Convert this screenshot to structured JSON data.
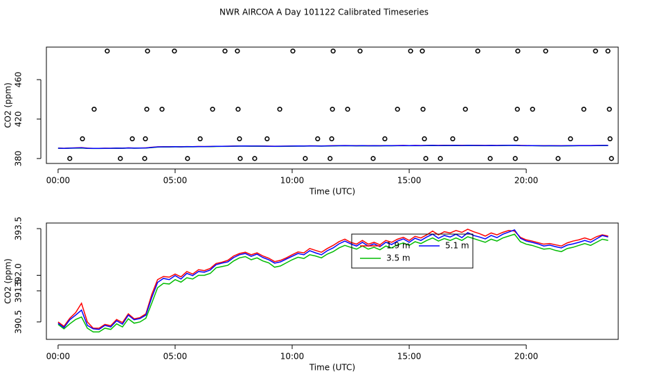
{
  "title": "NWR AIRCOA A  Day 101122  Calibrated Timeseries",
  "chart_data": [
    {
      "type": "scatter",
      "xlabel": "Time (UTC)",
      "ylabel": "CO2 (ppm)",
      "xlim": [
        -0.5,
        23.93
      ],
      "ylim": [
        375,
        493
      ],
      "xticks": [
        {
          "value": 0,
          "label": "00:00"
        },
        {
          "value": 5,
          "label": "05:00"
        },
        {
          "value": 10,
          "label": "10:00"
        },
        {
          "value": 15,
          "label": "15:00"
        },
        {
          "value": 20,
          "label": "20:00"
        }
      ],
      "yticks": [
        380,
        420,
        460
      ],
      "color": "#000000",
      "x": [
        2.1,
        3.82,
        4.97,
        7.13,
        7.66,
        10.03,
        11.75,
        12.9,
        15.06,
        15.56,
        17.93,
        19.64,
        20.83,
        22.96,
        23.49,
        1.54,
        3.79,
        4.44,
        6.6,
        7.69,
        9.47,
        11.72,
        12.37,
        14.5,
        15.59,
        17.4,
        19.62,
        20.27,
        22.46,
        23.55,
        1.04,
        3.17,
        3.73,
        6.07,
        7.75,
        8.93,
        11.09,
        11.69,
        13.96,
        15.65,
        16.86,
        19.56,
        21.89,
        23.58,
        0.5,
        2.66,
        3.7,
        5.53,
        7.78,
        8.4,
        10.56,
        11.62,
        13.46,
        15.71,
        16.33,
        18.46,
        19.53,
        21.36,
        23.64
      ],
      "values": [
        489,
        489,
        489,
        489,
        489,
        489,
        489,
        489,
        489,
        489,
        489,
        489,
        489,
        489,
        489,
        430,
        430,
        430,
        430,
        430,
        430,
        430,
        430,
        430,
        430,
        430,
        430,
        430,
        430,
        430,
        400,
        400,
        400,
        400,
        400,
        400,
        400,
        400,
        400,
        400,
        400,
        400,
        400,
        400,
        380,
        380,
        380,
        380,
        380,
        380,
        380,
        380,
        380,
        380,
        380,
        380,
        380,
        380,
        380
      ]
    },
    {
      "type": "line",
      "xlabel": "Time (UTC)",
      "ylabel": "CO2 (ppm)",
      "xlim": [
        -0.5,
        23.93
      ],
      "ylim": [
        389.94,
        393.68
      ],
      "xticks": [
        {
          "value": 0,
          "label": "00:00"
        },
        {
          "value": 5,
          "label": "05:00"
        },
        {
          "value": 10,
          "label": "10:00"
        },
        {
          "value": 15,
          "label": "15:00"
        },
        {
          "value": 20,
          "label": "20:00"
        }
      ],
      "yticks": [
        390.5,
        391.5,
        {
          "value": 392,
          "label": "392.0"
        },
        393.5
      ],
      "x": [
        0,
        0.25,
        0.5,
        0.75,
        1,
        1.25,
        1.5,
        1.75,
        2,
        2.25,
        2.5,
        2.75,
        3,
        3.25,
        3.5,
        3.75,
        4,
        4.25,
        4.5,
        4.75,
        5,
        5.25,
        5.5,
        5.75,
        6,
        6.25,
        6.5,
        6.75,
        7,
        7.25,
        7.5,
        7.75,
        8,
        8.25,
        8.5,
        8.75,
        9,
        9.25,
        9.5,
        9.75,
        10,
        10.25,
        10.5,
        10.75,
        11,
        11.25,
        11.5,
        11.75,
        12,
        12.25,
        12.5,
        12.75,
        13,
        13.25,
        13.5,
        13.75,
        14,
        14.25,
        14.5,
        14.75,
        15,
        15.25,
        15.5,
        15.75,
        16,
        16.25,
        16.5,
        16.75,
        17,
        17.25,
        17.5,
        17.75,
        18,
        18.25,
        18.5,
        18.75,
        19,
        19.25,
        19.5,
        19.75,
        20,
        20.25,
        20.5,
        20.75,
        21,
        21.25,
        21.5,
        21.75,
        22,
        22.25,
        22.5,
        22.75,
        23,
        23.25,
        23.5
      ],
      "series": [
        {
          "name": "1.9 m",
          "color": "#ff0000",
          "values": [
            390.5,
            390.36,
            390.62,
            390.8,
            391.1,
            390.5,
            390.3,
            390.3,
            390.42,
            390.38,
            390.58,
            390.48,
            390.76,
            390.6,
            390.64,
            390.76,
            391.38,
            391.86,
            391.96,
            391.94,
            392.04,
            391.95,
            392.12,
            392.04,
            392.18,
            392.15,
            392.22,
            392.38,
            392.42,
            392.48,
            392.62,
            392.7,
            392.74,
            392.66,
            392.72,
            392.62,
            392.55,
            392.44,
            392.48,
            392.56,
            392.66,
            392.75,
            392.72,
            392.86,
            392.8,
            392.74,
            392.86,
            392.96,
            393.08,
            393.16,
            393.06,
            393.0,
            393.12,
            393.0,
            393.06,
            392.98,
            393.12,
            393.06,
            393.16,
            393.22,
            393.12,
            393.25,
            393.2,
            393.3,
            393.42,
            393.3,
            393.4,
            393.36,
            393.44,
            393.38,
            393.48,
            393.4,
            393.34,
            393.26,
            393.36,
            393.3,
            393.38,
            393.44,
            393.42,
            393.22,
            393.14,
            393.1,
            393.05,
            393.0,
            393.02,
            392.98,
            392.94,
            393.04,
            393.1,
            393.14,
            393.2,
            393.14,
            393.24,
            393.3,
            393.26
          ]
        },
        {
          "name": "3.5 m",
          "color": "#00bb00",
          "values": [
            390.42,
            390.28,
            390.44,
            390.58,
            390.66,
            390.3,
            390.18,
            390.18,
            390.3,
            390.26,
            390.44,
            390.34,
            390.6,
            390.46,
            390.5,
            390.62,
            391.1,
            391.6,
            391.74,
            391.72,
            391.86,
            391.78,
            391.92,
            391.88,
            392.0,
            392.0,
            392.06,
            392.24,
            392.28,
            392.32,
            392.46,
            392.56,
            392.6,
            392.5,
            392.56,
            392.46,
            392.4,
            392.26,
            392.3,
            392.4,
            392.5,
            392.58,
            392.54,
            392.66,
            392.62,
            392.56,
            392.68,
            392.76,
            392.88,
            392.96,
            392.9,
            392.84,
            392.94,
            392.84,
            392.9,
            392.82,
            392.94,
            392.88,
            392.98,
            393.04,
            392.96,
            393.08,
            393.02,
            393.12,
            393.2,
            393.1,
            393.18,
            393.12,
            393.2,
            393.12,
            393.24,
            393.18,
            393.12,
            393.06,
            393.16,
            393.1,
            393.2,
            393.26,
            393.32,
            393.08,
            393.0,
            392.96,
            392.9,
            392.84,
            392.86,
            392.8,
            392.76,
            392.86,
            392.9,
            392.96,
            393.02,
            392.96,
            393.06,
            393.16,
            393.12
          ]
        },
        {
          "name": "5.1 m",
          "color": "#0000ff",
          "values": [
            390.46,
            390.32,
            390.57,
            390.72,
            390.88,
            390.39,
            390.28,
            390.26,
            390.39,
            390.34,
            390.54,
            390.43,
            390.72,
            390.57,
            390.61,
            390.72,
            391.28,
            391.77,
            391.9,
            391.86,
            391.99,
            391.88,
            392.06,
            391.99,
            392.12,
            392.1,
            392.17,
            392.34,
            392.39,
            392.43,
            392.57,
            392.66,
            392.7,
            392.61,
            392.68,
            392.57,
            392.5,
            392.39,
            392.43,
            392.52,
            392.61,
            392.7,
            392.66,
            392.79,
            392.72,
            392.66,
            392.79,
            392.88,
            393.01,
            393.1,
            393.01,
            392.94,
            393.06,
            392.94,
            393.01,
            392.92,
            393.06,
            392.99,
            393.1,
            393.17,
            393.06,
            393.19,
            393.12,
            393.23,
            393.32,
            393.19,
            393.28,
            393.23,
            393.32,
            393.21,
            393.37,
            393.28,
            393.23,
            393.17,
            393.28,
            393.21,
            393.32,
            393.39,
            393.46,
            393.19,
            393.1,
            393.06,
            393.01,
            392.94,
            392.97,
            392.92,
            392.88,
            392.97,
            393.01,
            393.06,
            393.12,
            393.06,
            393.17,
            393.28,
            393.23
          ]
        }
      ]
    }
  ]
}
